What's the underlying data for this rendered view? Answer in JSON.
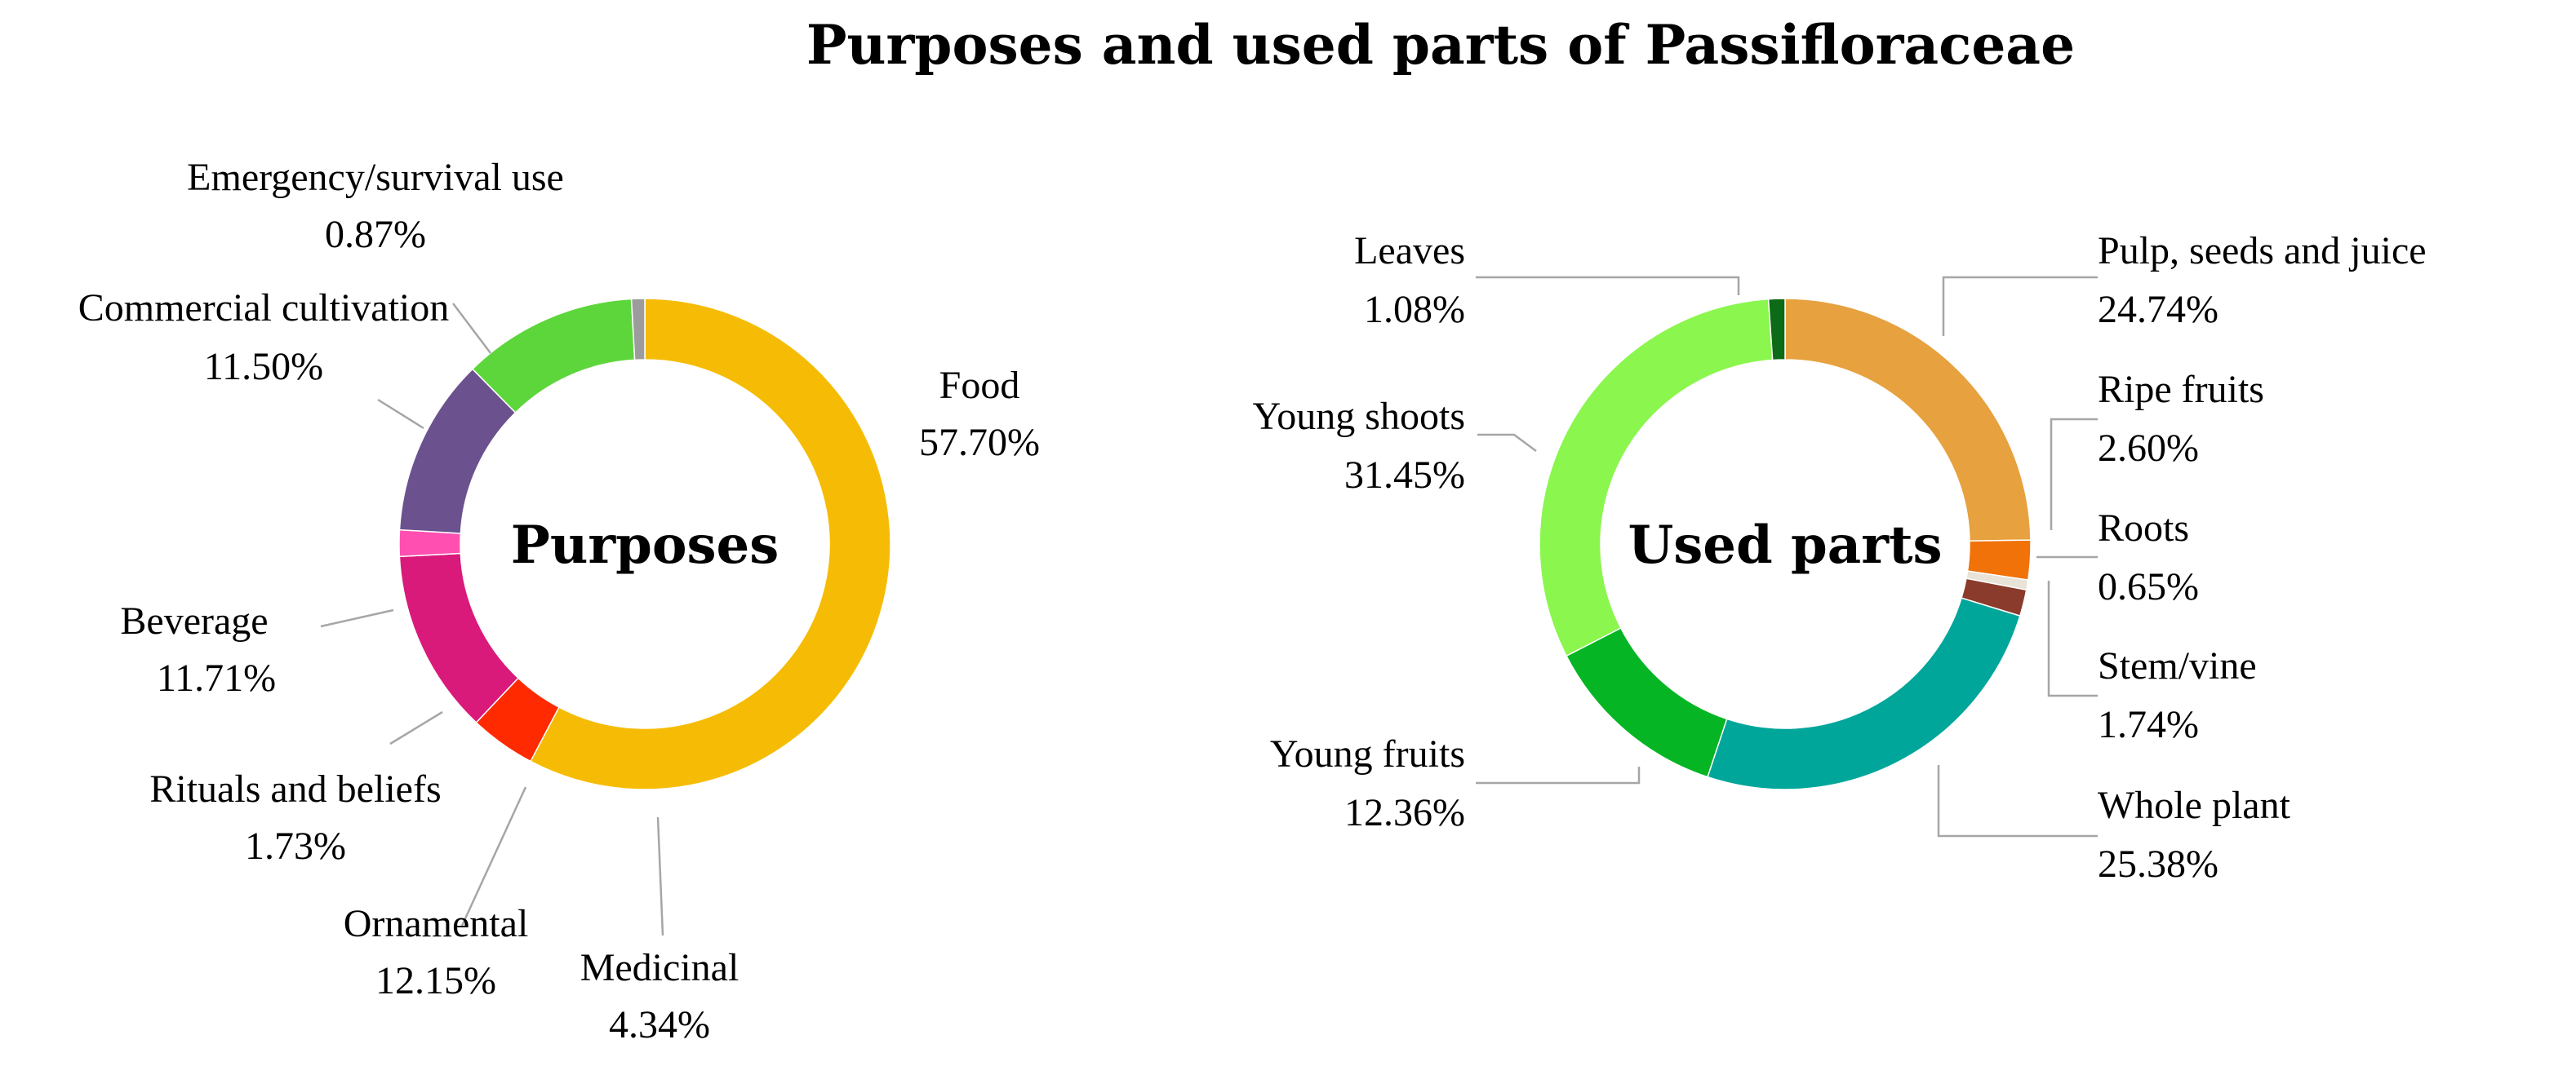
{
  "chart_data": [
    {
      "type": "pie",
      "variant": "donut",
      "title": "Purposes and used parts of Passifloraceae",
      "center_label": "Purposes",
      "start": "top",
      "direction": "clockwise",
      "categories": [
        "Food",
        "Medicinal",
        "Ornamental",
        "Rituals and beliefs",
        "Beverage",
        "Commercial cultivation",
        "Emergency/survival use"
      ],
      "values": [
        57.7,
        4.34,
        12.15,
        1.73,
        11.71,
        11.5,
        0.87
      ],
      "value_labels": [
        "57.70%",
        "4.34%",
        "12.15%",
        "1.73%",
        "11.71%",
        "11.50%",
        "0.87%"
      ],
      "colors": [
        "#F6BC05",
        "#FF2A00",
        "#D91A7B",
        "#FF4FB0",
        "#6B528E",
        "#5DD63B",
        "#9C9C9C"
      ]
    },
    {
      "type": "pie",
      "variant": "donut",
      "center_label": "Used parts",
      "start": "top",
      "direction": "clockwise",
      "categories": [
        "Pulp, seeds and juice",
        "Ripe fruits",
        "Roots",
        "Stem/vine",
        "Whole plant",
        "Young fruits",
        "Young shoots",
        "Leaves"
      ],
      "values": [
        24.74,
        2.6,
        0.65,
        1.74,
        25.38,
        12.36,
        31.45,
        1.08
      ],
      "value_labels": [
        "24.74%",
        "2.60%",
        "0.65%",
        "1.74%",
        "25.38%",
        "12.36%",
        "31.45%",
        "1.08%"
      ],
      "colors": [
        "#E7A13F",
        "#F07208",
        "#E8E2D7",
        "#8B3B2B",
        "#00A69A",
        "#05B524",
        "#8AF64E",
        "#0D6A16"
      ]
    }
  ]
}
